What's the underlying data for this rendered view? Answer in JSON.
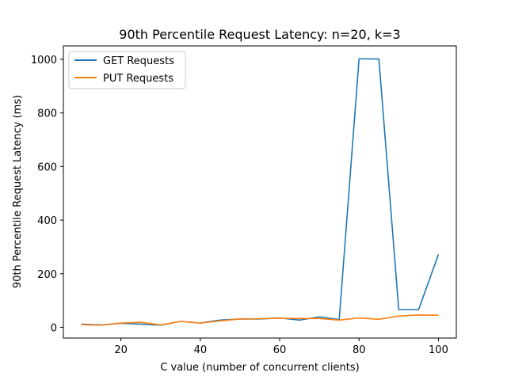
{
  "chart_data": {
    "type": "line",
    "title": "90th Percentile Request Latency: n=20, k=3",
    "xlabel": "C value (number of concurrent clients)",
    "ylabel": "90th Percentile Request Latency (ms)",
    "xlim": [
      5.5,
      104.5
    ],
    "ylim": [
      -40,
      1050
    ],
    "xticks": [
      "20",
      "40",
      "60",
      "80",
      "100"
    ],
    "yticks": [
      "0",
      "200",
      "400",
      "600",
      "800",
      "1000"
    ],
    "grid": false,
    "legend": "top-left",
    "x": [
      10,
      15,
      20,
      25,
      30,
      35,
      40,
      45,
      50,
      55,
      60,
      65,
      70,
      75,
      80,
      85,
      90,
      95,
      100
    ],
    "series": [
      {
        "name": "GET Requests",
        "color": "#1f77b4",
        "values": [
          12,
          9,
          15,
          12,
          8,
          22,
          16,
          27,
          31,
          31,
          35,
          27,
          39,
          29,
          1002,
          1001,
          66,
          66,
          272
        ]
      },
      {
        "name": "PUT Requests",
        "color": "#ff7f0e",
        "values": [
          10,
          8,
          16,
          19,
          9,
          22,
          16,
          24,
          31,
          32,
          34,
          33,
          33,
          27,
          35,
          30,
          42,
          46,
          45
        ]
      }
    ]
  }
}
